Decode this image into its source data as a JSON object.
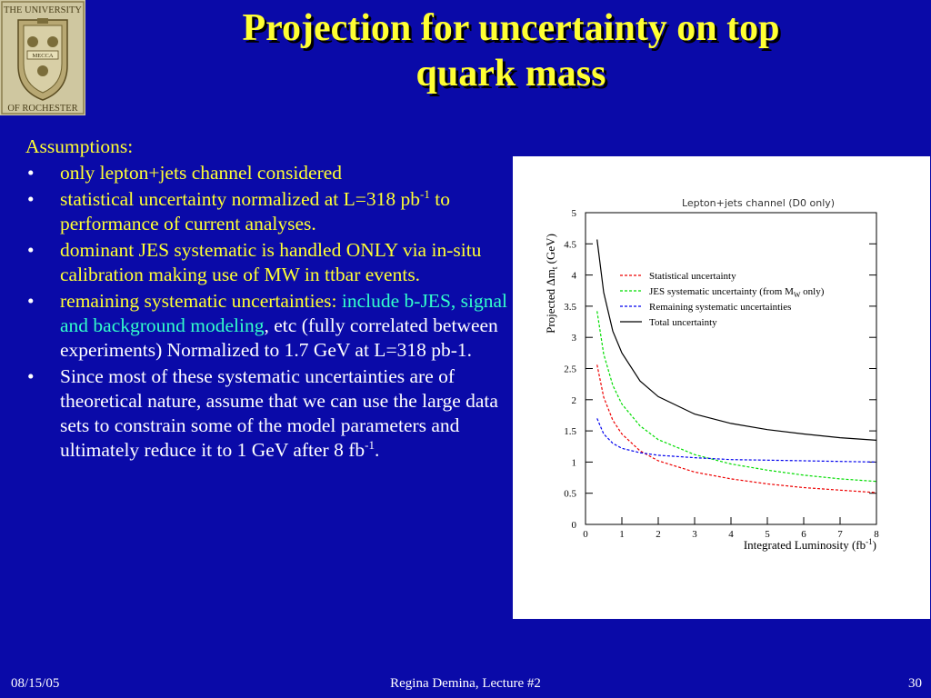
{
  "logo": {
    "top_text": "THE UNIVERSITY",
    "bottom_text": "OF ROCHESTER",
    "seal_text": "MECCA"
  },
  "title": {
    "line1": "Projection for uncertainty on top",
    "line2": "quark mass"
  },
  "assumptions_heading": "Assumptions:",
  "bullets": {
    "b1": "only lepton+jets channel considered",
    "b2_text1": "statistical uncertainty normalized at L=318 pb",
    "b2_sup": "-1",
    "b2_text2": " to performance of current analyses.",
    "b3": "dominant JES systematic is handled ONLY via in-situ calibration making use of MW in ttbar events.",
    "b4_yellow": "remaining systematic uncertainties: ",
    "b4_green": "include b-JES, signal and background modeling",
    "b4_white1": ", etc (fully correlated between experiments)",
    "b4_white2": "Normalized to 1.7 GeV at L=318 pb-1.",
    "b5_text": "Since most of these systematic uncertainties are of theoretical nature, assume that we can use the large data sets to constrain some of the model parameters and ultimately reduce it to 1 GeV after 8 fb",
    "b5_sup": "-1",
    "b5_end": "."
  },
  "chart_data": {
    "type": "line",
    "title": "Lepton+jets channel (D0 only)",
    "xlabel": "Integrated Luminosity (fb-1)",
    "ylabel": "Projected Δm_t (GeV)",
    "xlim": [
      0,
      8
    ],
    "ylim": [
      0,
      5
    ],
    "xticks": [
      "0",
      "1",
      "2",
      "3",
      "4",
      "5",
      "6",
      "7",
      "8"
    ],
    "yticks": [
      "0",
      "0.5",
      "1",
      "1.5",
      "2",
      "2.5",
      "3",
      "3.5",
      "4",
      "4.5",
      "5"
    ],
    "legend_position": "upper-right",
    "series": [
      {
        "name": "Statistical uncertainty",
        "color": "#ee0000",
        "dash": "3,2",
        "points": [
          [
            0.318,
            2.56
          ],
          [
            0.5,
            2.04
          ],
          [
            0.75,
            1.67
          ],
          [
            1,
            1.45
          ],
          [
            1.5,
            1.18
          ],
          [
            2,
            1.02
          ],
          [
            3,
            0.84
          ],
          [
            4,
            0.73
          ],
          [
            5,
            0.65
          ],
          [
            6,
            0.59
          ],
          [
            7,
            0.55
          ],
          [
            8,
            0.51
          ]
        ]
      },
      {
        "name": "JES systematic uncertainty (from M_W only)",
        "color": "#00dd00",
        "dash": "3,2",
        "points": [
          [
            0.318,
            3.42
          ],
          [
            0.5,
            2.73
          ],
          [
            0.75,
            2.23
          ],
          [
            1,
            1.93
          ],
          [
            1.5,
            1.58
          ],
          [
            2,
            1.36
          ],
          [
            3,
            1.12
          ],
          [
            4,
            0.97
          ],
          [
            5,
            0.87
          ],
          [
            6,
            0.79
          ],
          [
            7,
            0.73
          ],
          [
            8,
            0.69
          ]
        ]
      },
      {
        "name": "Remaining systematic uncertainties",
        "color": "#0000ee",
        "dash": "3,2",
        "points": [
          [
            0.318,
            1.7
          ],
          [
            0.5,
            1.45
          ],
          [
            0.75,
            1.3
          ],
          [
            1,
            1.22
          ],
          [
            1.5,
            1.15
          ],
          [
            2,
            1.11
          ],
          [
            3,
            1.07
          ],
          [
            4,
            1.04
          ],
          [
            5,
            1.03
          ],
          [
            6,
            1.02
          ],
          [
            7,
            1.01
          ],
          [
            8,
            1.0
          ]
        ]
      },
      {
        "name": "Total uncertainty",
        "color": "#000000",
        "dash": "",
        "points": [
          [
            0.318,
            4.57
          ],
          [
            0.5,
            3.72
          ],
          [
            0.75,
            3.1
          ],
          [
            1,
            2.75
          ],
          [
            1.5,
            2.3
          ],
          [
            2,
            2.05
          ],
          [
            3,
            1.77
          ],
          [
            4,
            1.62
          ],
          [
            5,
            1.52
          ],
          [
            6,
            1.45
          ],
          [
            7,
            1.39
          ],
          [
            8,
            1.35
          ]
        ]
      }
    ]
  },
  "footer": {
    "date": "08/15/05",
    "center": "Regina Demina, Lecture #2",
    "page": "30"
  }
}
